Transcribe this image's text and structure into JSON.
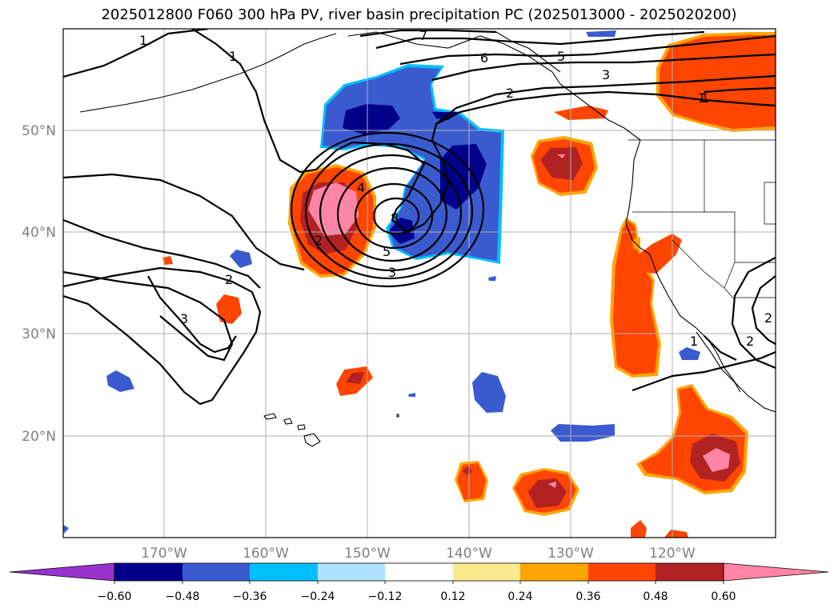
{
  "title": "2025012800 F060 300 hPa PV, river basin precipitation PC (2025013000 - 2025020200)",
  "lat_labels": [
    "50°N",
    "40°N",
    "30°N",
    "20°N"
  ],
  "lon_labels": [
    "170°W",
    "160°W",
    "150°W",
    "140°W",
    "130°W",
    "120°W"
  ],
  "contour_labels": [
    "1",
    "1",
    "1",
    "7",
    "6",
    "5",
    "3",
    "2",
    "1",
    "4",
    "2",
    "8",
    "5",
    "3",
    "2",
    "3",
    "2",
    "1",
    "2"
  ],
  "colorbar": {
    "ticks": [
      "−0.60",
      "−0.48",
      "−0.36",
      "−0.24",
      "−0.12",
      "0.12",
      "0.24",
      "0.36",
      "0.48",
      "0.60"
    ],
    "colors": [
      "#9932cc",
      "#00008b",
      "#3a5bcf",
      "#00bfff",
      "#b0e2ff",
      "#ffffff",
      "#ffe98f",
      "#ffa500",
      "#ff4500",
      "#b22222",
      "#ff85a6"
    ]
  },
  "colors": {
    "strong_negative": "#00008b",
    "negative": "#3a5bcf",
    "weak_negative": "#00bfff",
    "weak_positive": "#ffe98f",
    "positive": "#ff4500",
    "strong_positive": "#b22222",
    "max_positive": "#ff85a6"
  }
}
